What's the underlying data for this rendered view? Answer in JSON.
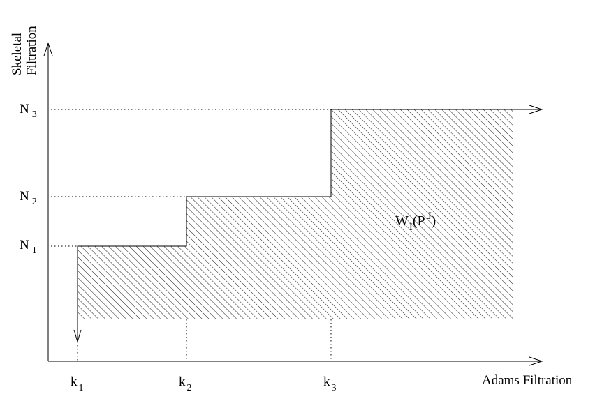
{
  "axes": {
    "x_label": "Adams Filtration",
    "y_label_line1": "Skeletal",
    "y_label_line2": "Filtration"
  },
  "y_ticks": [
    {
      "base": "N",
      "sub": "3"
    },
    {
      "base": "N",
      "sub": "2"
    },
    {
      "base": "N",
      "sub": "1"
    }
  ],
  "x_ticks": [
    {
      "base": "k",
      "sub": "1"
    },
    {
      "base": "k",
      "sub": "2"
    },
    {
      "base": "k",
      "sub": "3"
    }
  ],
  "region_label": {
    "w": "W",
    "w_sub": "I",
    "open": "(P",
    "sup": "J",
    "close": ")"
  },
  "colors": {
    "stroke": "#000000",
    "background": "#ffffff"
  }
}
